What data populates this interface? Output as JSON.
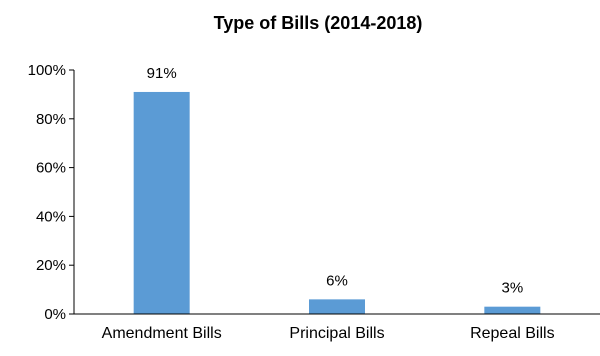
{
  "chart_data": {
    "type": "bar",
    "title": "Type of Bills (2014-2018)",
    "xlabel": "",
    "ylabel": "",
    "categories": [
      "Amendment Bills",
      "Principal Bills",
      "Repeal Bills"
    ],
    "values": [
      91,
      6,
      3
    ],
    "data_labels": [
      "91%",
      "6%",
      "3%"
    ],
    "ylim": [
      0,
      100
    ],
    "yticks": [
      0,
      20,
      40,
      60,
      80,
      100
    ],
    "ytick_labels": [
      "0%",
      "20%",
      "40%",
      "60%",
      "80%",
      "100%"
    ],
    "grid": false,
    "legend": "none",
    "bar_color": "#5b9bd5",
    "axis_color": "#000000"
  }
}
